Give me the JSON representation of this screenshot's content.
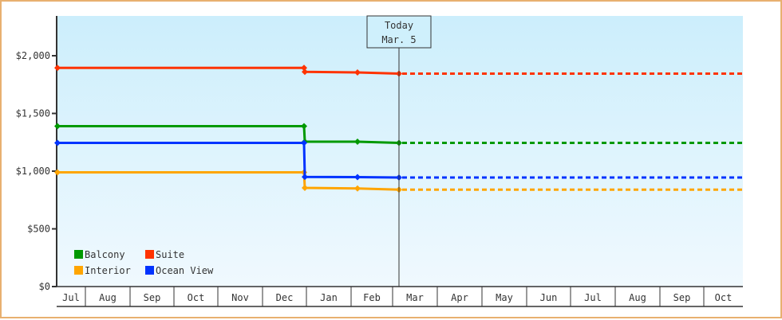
{
  "chart_data": {
    "type": "line",
    "title": "",
    "xlabel": "",
    "ylabel": "",
    "ylim": [
      0,
      2350
    ],
    "y_ticks": [
      "$0",
      "$500",
      "$1,000",
      "$1,500",
      "$2,000"
    ],
    "y_tick_values": [
      0,
      500,
      1000,
      1500,
      2000
    ],
    "categories": [
      "Jul",
      "Aug",
      "Sep",
      "Oct",
      "Nov",
      "Dec",
      "Jan",
      "Feb",
      "Mar",
      "Apr",
      "May",
      "Jun",
      "Jul",
      "Aug",
      "Sep",
      "Oct"
    ],
    "today_marker": {
      "line1": "Today",
      "line2": "Mar. 5"
    },
    "legend_position": "bottom-left inside plot",
    "grid": false,
    "series": [
      {
        "name": "Balcony",
        "color": "#009900",
        "points": [
          {
            "x": "Jul",
            "y": 1390
          },
          {
            "x": "Dec",
            "y": 1390
          },
          {
            "x": "Dec",
            "y": 1255
          },
          {
            "x": "Feb",
            "y": 1255
          },
          {
            "x": "Mar 5",
            "y": 1245
          }
        ],
        "projection": 1245
      },
      {
        "name": "Suite",
        "color": "#ff3300",
        "points": [
          {
            "x": "Jul",
            "y": 1895
          },
          {
            "x": "Dec",
            "y": 1895
          },
          {
            "x": "Dec",
            "y": 1860
          },
          {
            "x": "Feb",
            "y": 1855
          },
          {
            "x": "Mar 5",
            "y": 1845
          }
        ],
        "projection": 1845
      },
      {
        "name": "Interior",
        "color": "#ffa500",
        "points": [
          {
            "x": "Jul",
            "y": 990
          },
          {
            "x": "Dec",
            "y": 990
          },
          {
            "x": "Dec",
            "y": 855
          },
          {
            "x": "Feb",
            "y": 850
          },
          {
            "x": "Mar 5",
            "y": 840
          }
        ],
        "projection": 840
      },
      {
        "name": "Ocean View",
        "color": "#0033ff",
        "points": [
          {
            "x": "Jul",
            "y": 1245
          },
          {
            "x": "Dec",
            "y": 1245
          },
          {
            "x": "Dec",
            "y": 950
          },
          {
            "x": "Feb",
            "y": 948
          },
          {
            "x": "Mar 5",
            "y": 945
          }
        ],
        "projection": 945
      }
    ]
  },
  "legend": [
    {
      "label": "Balcony",
      "color": "#009900"
    },
    {
      "label": "Suite",
      "color": "#ff3300"
    },
    {
      "label": "Interior",
      "color": "#ffa500"
    },
    {
      "label": "Ocean View",
      "color": "#0033ff"
    }
  ]
}
